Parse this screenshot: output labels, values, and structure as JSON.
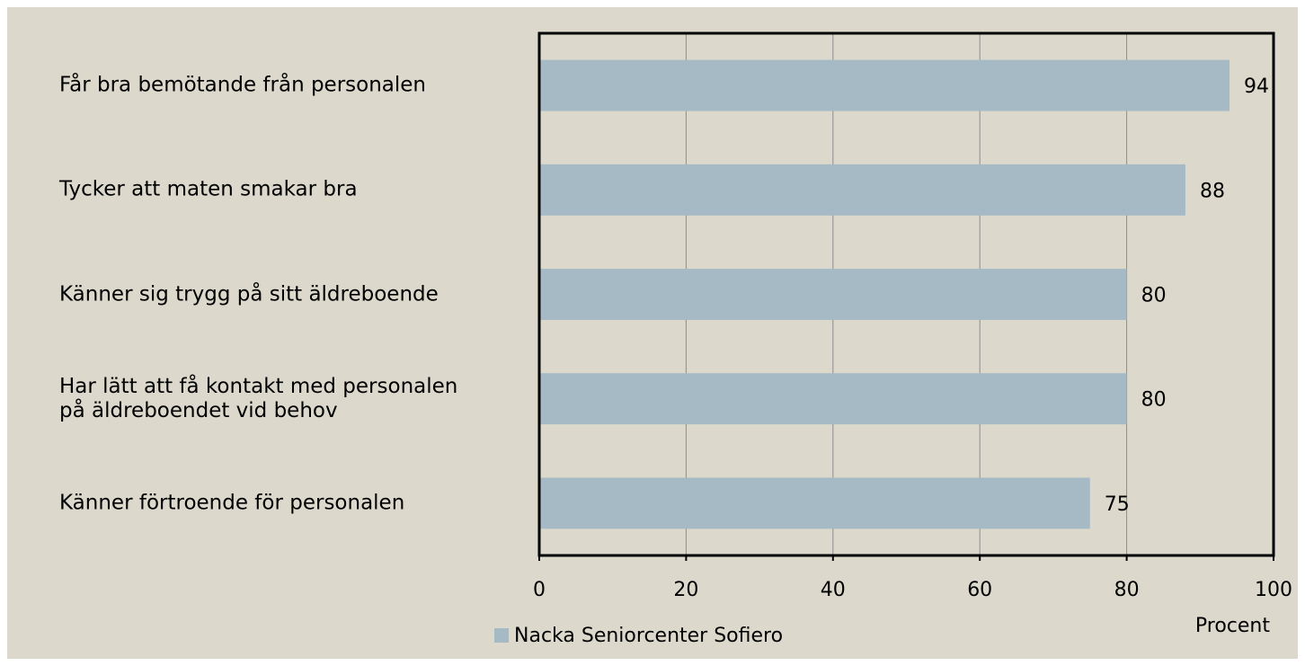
{
  "chart_data": {
    "type": "bar",
    "orientation": "horizontal",
    "categories": [
      "Får bra bemötande från personalen",
      "Tycker att maten smakar bra",
      "Känner sig trygg på sitt äldreboende",
      "Har lätt att få kontakt med personalen på äldreboendet vid behov",
      "Känner förtroende för personalen"
    ],
    "series": [
      {
        "name": "Nacka Seniorcenter Sofiero",
        "color": "#a6bac5",
        "values": [
          94,
          88,
          80,
          80,
          75
        ]
      }
    ],
    "xlim": [
      0,
      100
    ],
    "xticks": [
      0,
      20,
      40,
      60,
      80,
      100
    ],
    "xlabel": "Procent",
    "grid": true,
    "legend": "bottom"
  }
}
